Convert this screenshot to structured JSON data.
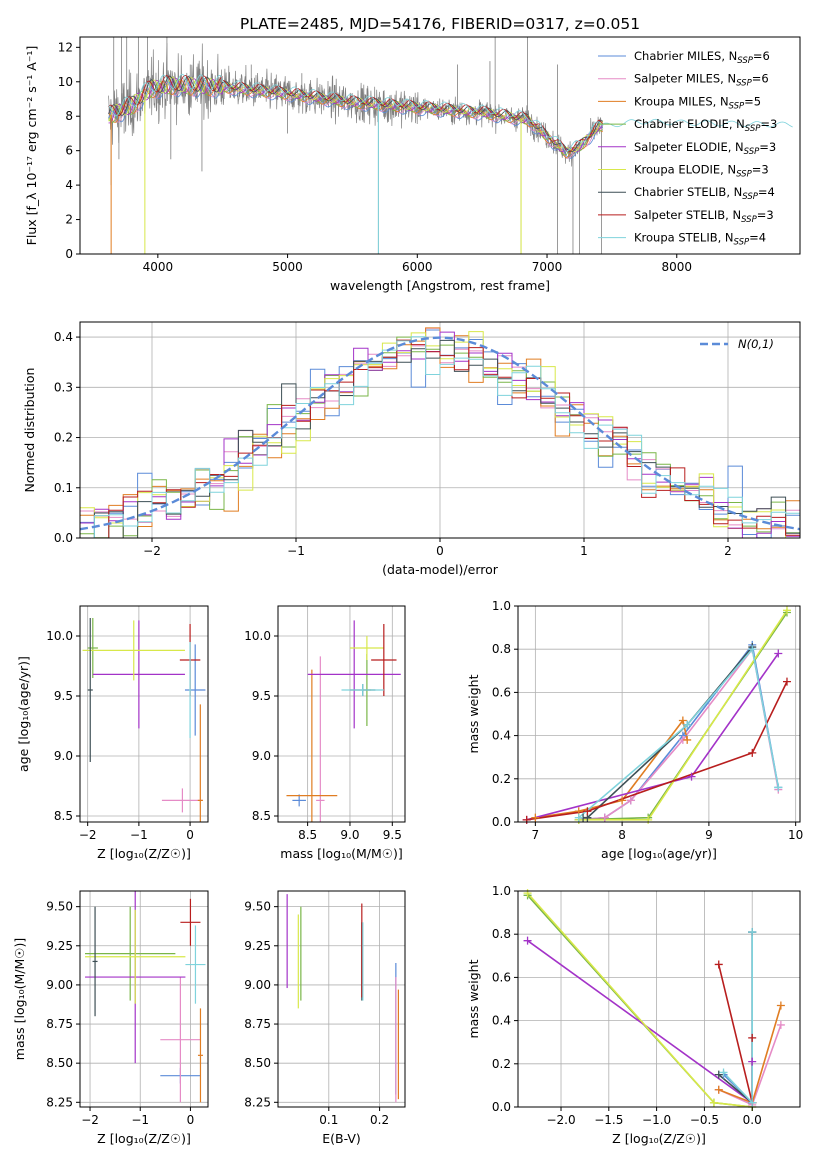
{
  "title": "PLATE=2485, MJD=54176, FIBERID=0317, z=0.051",
  "colors": {
    "Chabrier MILES": "#5b8bd8",
    "Salpeter MILES": "#e58bc6",
    "Kroupa MILES": "#e07d22",
    "Chabrier ELODIE": "#7ab648",
    "Salpeter ELODIE": "#a333c8",
    "Kroupa ELODIE": "#d8e84a",
    "Chabrier STELIB": "#3d4f55",
    "Salpeter STELIB": "#b81e1e",
    "Kroupa STELIB": "#7fd3dc",
    "data": "#808080",
    "normal": "#5b8bd8",
    "grid": "#b0b0b0"
  },
  "legend": [
    {
      "model": "Chabrier MILES",
      "label": "Chabrier MILES, N",
      "sub": "SSP",
      "tail": "=6"
    },
    {
      "model": "Salpeter MILES",
      "label": "Salpeter MILES, N",
      "sub": "SSP",
      "tail": "=6"
    },
    {
      "model": "Kroupa MILES",
      "label": "Kroupa MILES, N",
      "sub": "SSP",
      "tail": "=5"
    },
    {
      "model": "Chabrier ELODIE",
      "label": "Chabrier ELODIE, N",
      "sub": "SSP",
      "tail": "=3"
    },
    {
      "model": "Salpeter ELODIE",
      "label": "Salpeter ELODIE, N",
      "sub": "SSP",
      "tail": "=3"
    },
    {
      "model": "Kroupa ELODIE",
      "label": "Kroupa ELODIE, N",
      "sub": "SSP",
      "tail": "=3"
    },
    {
      "model": "Chabrier STELIB",
      "label": "Chabrier STELIB, N",
      "sub": "SSP",
      "tail": "=4"
    },
    {
      "model": "Salpeter STELIB",
      "label": "Salpeter STELIB, N",
      "sub": "SSP",
      "tail": "=3"
    },
    {
      "model": "Kroupa STELIB",
      "label": "Kroupa STELIB, N",
      "sub": "SSP",
      "tail": "=4"
    }
  ],
  "chart_data": [
    {
      "id": "spectrum",
      "type": "line",
      "xlabel": "wavelength [Angstrom, rest frame]",
      "ylabel": "Flux [f_λ 10⁻¹⁷ erg cm⁻² s⁻¹ A⁻¹]",
      "xlim": [
        3400,
        8950
      ],
      "ylim": [
        0,
        12.6
      ],
      "xticks": [
        4000,
        5000,
        6000,
        7000,
        8000
      ],
      "yticks": [
        0,
        2,
        4,
        6,
        8,
        10,
        12
      ],
      "grid": false,
      "legend": "top-right",
      "continuum_knots": [
        [
          3620,
          8.0
        ],
        [
          3800,
          8.6
        ],
        [
          3950,
          9.6
        ],
        [
          4100,
          9.8
        ],
        [
          4500,
          9.7
        ],
        [
          5000,
          9.3
        ],
        [
          5500,
          8.8
        ],
        [
          6000,
          8.5
        ],
        [
          6500,
          8.2
        ],
        [
          6850,
          7.8
        ],
        [
          7050,
          6.5
        ],
        [
          7150,
          5.9
        ],
        [
          7250,
          6.2
        ],
        [
          7400,
          7.4
        ],
        [
          7700,
          7.7
        ],
        [
          8200,
          7.6
        ],
        [
          8900,
          7.5
        ]
      ],
      "deep_spikes": [
        [
          3640,
          4.0
        ],
        [
          3700,
          5.5
        ],
        [
          3740,
          7.0
        ],
        [
          4100,
          5.5
        ],
        [
          4340,
          4.8
        ],
        [
          5000,
          7.0
        ],
        [
          5700,
          0.0
        ],
        [
          6570,
          8.5
        ],
        [
          6800,
          0.0
        ],
        [
          7080,
          0.0
        ],
        [
          7200,
          0.0
        ],
        [
          7250,
          0.0
        ],
        [
          7420,
          0.0
        ]
      ],
      "high_spikes": [
        [
          3660,
          12.6
        ],
        [
          3720,
          12.6
        ],
        [
          3760,
          12.6
        ],
        [
          3850,
          12.6
        ],
        [
          3920,
          12.6
        ],
        [
          4070,
          12.6
        ],
        [
          4250,
          11.0
        ],
        [
          4720,
          11.0
        ],
        [
          5110,
          10.5
        ],
        [
          6310,
          11.0
        ],
        [
          6560,
          11.2
        ],
        [
          6600,
          12.6
        ],
        [
          6850,
          12.6
        ],
        [
          7080,
          11.0
        ]
      ]
    },
    {
      "id": "residuals",
      "type": "histogram",
      "xlabel": "(data-model)/error",
      "ylabel": "Normed distribution",
      "xlim": [
        -2.5,
        2.5
      ],
      "ylim": [
        0,
        0.43
      ],
      "xticks": [
        -2,
        -1,
        0,
        1,
        2
      ],
      "yticks": [
        0.0,
        0.1,
        0.2,
        0.3,
        0.4
      ],
      "grid": true,
      "legend": "top-right",
      "legend_label": "N(0,1)",
      "bin_width": 0.1,
      "normal": {
        "mean": 0,
        "sigma": 1
      }
    },
    {
      "id": "age_Z",
      "type": "errorbar",
      "xlabel": "Z [log₁₀(Z/Z☉)]",
      "ylabel": "age  [log₁₀(age/yr)]",
      "xlim": [
        -2.15,
        0.35
      ],
      "ylim": [
        8.45,
        10.25
      ],
      "xticks": [
        -2,
        -1,
        0
      ],
      "yticks": [
        8.5,
        9.0,
        9.5,
        10.0
      ],
      "grid": true,
      "points": [
        {
          "model": "Chabrier MILES",
          "x": 0.1,
          "xerr": 0.2,
          "y": 9.55,
          "yerr": 0.38
        },
        {
          "model": "Salpeter MILES",
          "x": -0.15,
          "xerr": 0.4,
          "y": 8.63,
          "yerr": 0.1
        },
        {
          "model": "Kroupa MILES",
          "x": 0.2,
          "xerr": 0.05,
          "y": 8.63,
          "yerr": 0.8
        },
        {
          "model": "Chabrier ELODIE",
          "x": -1.9,
          "xerr": 0.1,
          "y": 9.9,
          "yerr": 0.25
        },
        {
          "model": "Salpeter ELODIE",
          "x": -1.0,
          "xerr": 0.9,
          "y": 9.68,
          "yerr": 0.45
        },
        {
          "model": "Kroupa ELODIE",
          "x": -1.1,
          "xerr": 1.0,
          "y": 9.88,
          "yerr": 0.25
        },
        {
          "model": "Chabrier STELIB",
          "x": -1.95,
          "xerr": 0.05,
          "y": 9.55,
          "yerr": 0.6
        },
        {
          "model": "Salpeter STELIB",
          "x": 0.0,
          "xerr": 0.2,
          "y": 9.8,
          "yerr": 0.3
        },
        {
          "model": "Kroupa STELIB",
          "x": 0.0,
          "xerr": 0.02,
          "y": 9.55,
          "yerr": 0.4
        }
      ]
    },
    {
      "id": "age_mass",
      "type": "errorbar",
      "xlabel": "mass [log₁₀(M/M☉)]",
      "ylabel": "",
      "xlim": [
        8.15,
        9.65
      ],
      "ylim": [
        8.45,
        10.25
      ],
      "xticks": [
        8.5,
        9.0,
        9.5
      ],
      "yticks": [
        8.5,
        9.0,
        9.5,
        10.0
      ],
      "grid": true,
      "points": [
        {
          "model": "Chabrier MILES",
          "x": 8.4,
          "xerr": 0.08,
          "y": 8.63,
          "yerr": 0.05
        },
        {
          "model": "Salpeter MILES",
          "x": 8.65,
          "xerr": 0.05,
          "y": 8.63,
          "yerr": 1.2
        },
        {
          "model": "Kroupa MILES",
          "x": 8.55,
          "xerr": 0.3,
          "y": 8.67,
          "yerr": 1.05
        },
        {
          "model": "Chabrier ELODIE",
          "x": 9.2,
          "xerr": 0.05,
          "y": 9.55,
          "yerr": 0.3
        },
        {
          "model": "Salpeter ELODIE",
          "x": 9.05,
          "xerr": 0.55,
          "y": 9.68,
          "yerr": 0.45
        },
        {
          "model": "Kroupa ELODIE",
          "x": 9.2,
          "xerr": 0.2,
          "y": 9.9,
          "yerr": 0.1
        },
        {
          "model": "Chabrier STELIB",
          "x": 9.15,
          "xerr": 0.15,
          "y": 9.55,
          "yerr": 0.05
        },
        {
          "model": "Salpeter STELIB",
          "x": 9.4,
          "xerr": 0.15,
          "y": 9.8,
          "yerr": 0.3
        },
        {
          "model": "Kroupa STELIB",
          "x": 9.15,
          "xerr": 0.25,
          "y": 9.55,
          "yerr": 0.05
        }
      ]
    },
    {
      "id": "weight_age",
      "type": "line",
      "xlabel": "age  [log₁₀(age/yr)]",
      "ylabel": "mass weight",
      "xlim": [
        6.8,
        10.05
      ],
      "ylim": [
        0,
        1.0
      ],
      "xticks": [
        7,
        8,
        9,
        10
      ],
      "yticks": [
        0.0,
        0.2,
        0.4,
        0.6,
        0.8,
        1.0
      ],
      "grid": true,
      "series": [
        {
          "model": "Chabrier MILES",
          "x": [
            7.5,
            7.8,
            8.1,
            8.7,
            9.5,
            9.8
          ],
          "y": [
            0.01,
            0.02,
            0.1,
            0.4,
            0.82,
            0.16
          ]
        },
        {
          "model": "Salpeter MILES",
          "x": [
            7.5,
            7.8,
            8.1,
            8.7,
            9.5,
            9.8
          ],
          "y": [
            0.01,
            0.02,
            0.1,
            0.38,
            0.8,
            0.15
          ]
        },
        {
          "model": "Kroupa MILES",
          "x": [
            7.0,
            7.5,
            8.0,
            8.7,
            8.75
          ],
          "y": [
            0.02,
            0.05,
            0.1,
            0.47,
            0.38
          ]
        },
        {
          "model": "Chabrier ELODIE",
          "x": [
            7.5,
            8.3,
            9.9
          ],
          "y": [
            0.01,
            0.02,
            0.97
          ]
        },
        {
          "model": "Salpeter ELODIE",
          "x": [
            6.9,
            8.8,
            9.8
          ],
          "y": [
            0.01,
            0.21,
            0.78
          ]
        },
        {
          "model": "Kroupa ELODIE",
          "x": [
            7.5,
            8.3,
            9.9
          ],
          "y": [
            0.01,
            0.01,
            0.98
          ]
        },
        {
          "model": "Chabrier STELIB",
          "x": [
            7.55,
            7.6,
            8.75,
            9.5
          ],
          "y": [
            0.02,
            0.02,
            0.45,
            0.81
          ]
        },
        {
          "model": "Salpeter STELIB",
          "x": [
            6.9,
            7.6,
            9.5,
            9.9
          ],
          "y": [
            0.01,
            0.05,
            0.32,
            0.65
          ]
        },
        {
          "model": "Kroupa STELIB",
          "x": [
            7.5,
            8.75,
            9.5,
            9.8
          ],
          "y": [
            0.02,
            0.45,
            0.8,
            0.16
          ]
        }
      ]
    },
    {
      "id": "mass_Z",
      "type": "errorbar",
      "xlabel": "Z [log₁₀(Z/Z☉)]",
      "ylabel": "mass [log₁₀(M/M☉)]",
      "xlim": [
        -2.2,
        0.35
      ],
      "ylim": [
        8.22,
        9.6
      ],
      "xticks": [
        -2,
        -1,
        0
      ],
      "yticks": [
        8.25,
        8.5,
        8.75,
        9.0,
        9.25,
        9.5
      ],
      "grid": true,
      "points": [
        {
          "model": "Chabrier MILES",
          "x": -0.2,
          "xerr": 0.4,
          "y": 8.42,
          "yerr": 0.05
        },
        {
          "model": "Salpeter MILES",
          "x": -0.2,
          "xerr": 0.4,
          "y": 8.65,
          "yerr": 0.4
        },
        {
          "model": "Kroupa MILES",
          "x": 0.2,
          "xerr": 0.05,
          "y": 8.55,
          "yerr": 0.3
        },
        {
          "model": "Chabrier ELODIE",
          "x": -1.2,
          "xerr": 0.9,
          "y": 9.2,
          "yerr": 0.3
        },
        {
          "model": "Salpeter ELODIE",
          "x": -1.1,
          "xerr": 1.0,
          "y": 9.05,
          "yerr": 0.55
        },
        {
          "model": "Kroupa ELODIE",
          "x": -1.1,
          "xerr": 1.0,
          "y": 9.18,
          "yerr": 0.3
        },
        {
          "model": "Chabrier STELIB",
          "x": -1.9,
          "xerr": 0.05,
          "y": 9.15,
          "yerr": 0.35
        },
        {
          "model": "Salpeter STELIB",
          "x": 0.0,
          "xerr": 0.2,
          "y": 9.4,
          "yerr": 0.15
        },
        {
          "model": "Kroupa STELIB",
          "x": 0.1,
          "xerr": 0.2,
          "y": 9.13,
          "yerr": 0.25
        }
      ]
    },
    {
      "id": "mass_ebv",
      "type": "errorbar",
      "xlabel": "E(B-V)",
      "ylabel": "",
      "xlim": [
        0.0,
        0.25
      ],
      "ylim": [
        8.22,
        9.6
      ],
      "xticks": [
        0.1,
        0.2
      ],
      "yticks": [
        8.25,
        8.5,
        8.75,
        9.0,
        9.25,
        9.5
      ],
      "grid": true,
      "points": [
        {
          "model": "Chabrier MILES",
          "x": 0.232,
          "y": 8.72,
          "yerr": 0.42
        },
        {
          "model": "Salpeter MILES",
          "x": 0.232,
          "y": 8.65,
          "yerr": 0.4
        },
        {
          "model": "Kroupa MILES",
          "x": 0.237,
          "y": 8.62,
          "yerr": 0.35
        },
        {
          "model": "Chabrier ELODIE",
          "x": 0.045,
          "y": 9.2,
          "yerr": 0.3
        },
        {
          "model": "Salpeter ELODIE",
          "x": 0.018,
          "y": 9.28,
          "yerr": 0.3
        },
        {
          "model": "Kroupa ELODIE",
          "x": 0.04,
          "y": 9.15,
          "yerr": 0.3
        },
        {
          "model": "Chabrier STELIB",
          "x": 0.165,
          "y": 9.15,
          "yerr": 0.25
        },
        {
          "model": "Salpeter STELIB",
          "x": 0.165,
          "y": 9.22,
          "yerr": 0.3
        },
        {
          "model": "Kroupa STELIB",
          "x": 0.167,
          "y": 9.15,
          "yerr": 0.25
        }
      ]
    },
    {
      "id": "weight_Z",
      "type": "line",
      "xlabel": "Z [log₁₀(Z/Z☉)]",
      "ylabel": "mass weight",
      "xlim": [
        -2.45,
        0.5
      ],
      "ylim": [
        0,
        1.0
      ],
      "xticks": [
        -2.0,
        -1.5,
        -1.0,
        -0.5,
        0.0
      ],
      "yticks": [
        0.0,
        0.2,
        0.4,
        0.6,
        0.8,
        1.0
      ],
      "grid": true,
      "series": [
        {
          "model": "Chabrier MILES",
          "x": [
            -0.3,
            0.0,
            0.0
          ],
          "y": [
            0.15,
            0.02,
            0.81
          ]
        },
        {
          "model": "Salpeter MILES",
          "x": [
            -0.35,
            0.0,
            0.3
          ],
          "y": [
            0.08,
            0.01,
            0.38
          ]
        },
        {
          "model": "Kroupa MILES",
          "x": [
            -0.35,
            0.0,
            0.3
          ],
          "y": [
            0.08,
            0.02,
            0.47
          ]
        },
        {
          "model": "Chabrier ELODIE",
          "x": [
            -2.35,
            -0.4,
            0.0
          ],
          "y": [
            0.98,
            0.02,
            0.0
          ]
        },
        {
          "model": "Salpeter ELODIE",
          "x": [
            -2.35,
            0.0,
            0.0
          ],
          "y": [
            0.77,
            0.02,
            0.21
          ]
        },
        {
          "model": "Kroupa ELODIE",
          "x": [
            -2.35,
            -0.4,
            0.0
          ],
          "y": [
            0.99,
            0.02,
            0.0
          ]
        },
        {
          "model": "Chabrier STELIB",
          "x": [
            -0.35,
            0.0,
            0.0
          ],
          "y": [
            0.15,
            0.02,
            0.81
          ]
        },
        {
          "model": "Salpeter STELIB",
          "x": [
            -0.35,
            0.0,
            0.0
          ],
          "y": [
            0.66,
            0.02,
            0.32
          ]
        },
        {
          "model": "Kroupa STELIB",
          "x": [
            -0.3,
            0.0,
            0.0
          ],
          "y": [
            0.16,
            0.02,
            0.81
          ]
        }
      ]
    }
  ]
}
